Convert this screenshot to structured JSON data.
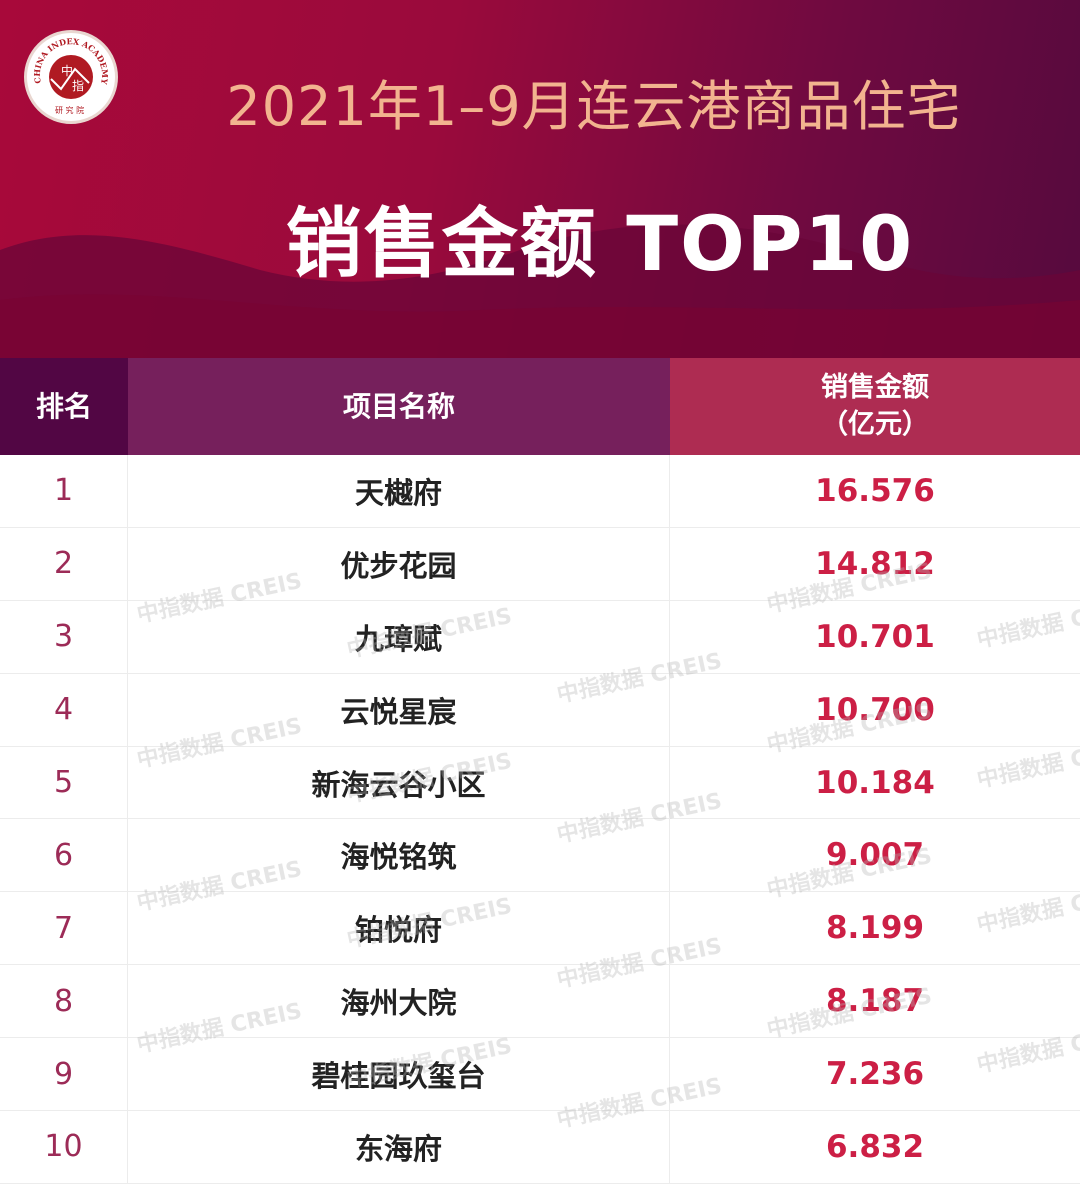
{
  "header": {
    "logo_text": "CHINA INDEX ACADEMY 中指 研究院",
    "title_line1": "2021年1–9月连云港商品住宅",
    "title_line2": "销售金额 TOP10"
  },
  "colors": {
    "banner": "#9a0a3c",
    "title_accent": "#f2b48f",
    "value_red": "#cc1f45",
    "rank_color": "#9c2b57"
  },
  "watermark": "中指数据 CREIS",
  "chart_data": {
    "type": "table",
    "title": "2021年1–9月连云港商品住宅 销售金额 TOP10",
    "columns": [
      "排名",
      "项目名称",
      "销售金额",
      "（亿元）"
    ],
    "rows": [
      {
        "rank": "1",
        "name": "天樾府",
        "value": "16.576"
      },
      {
        "rank": "2",
        "name": "优步花园",
        "value": "14.812"
      },
      {
        "rank": "3",
        "name": "九璋赋",
        "value": "10.701"
      },
      {
        "rank": "4",
        "name": "云悦星宸",
        "value": "10.700"
      },
      {
        "rank": "5",
        "name": "新海云谷小区",
        "value": "10.184"
      },
      {
        "rank": "6",
        "name": "海悦铭筑",
        "value": "9.007"
      },
      {
        "rank": "7",
        "name": "铂悦府",
        "value": "8.199"
      },
      {
        "rank": "8",
        "name": "海州大院",
        "value": "8.187"
      },
      {
        "rank": "9",
        "name": "碧桂园玖玺台",
        "value": "7.236"
      },
      {
        "rank": "10",
        "name": "东海府",
        "value": "6.832"
      }
    ]
  }
}
